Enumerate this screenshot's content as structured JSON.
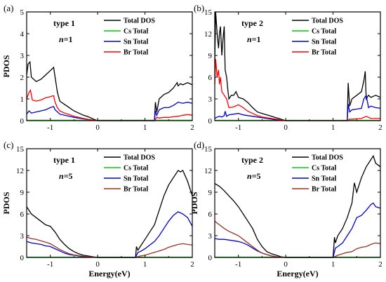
{
  "chart_data": [
    {
      "type": "line",
      "panel_label": "(a)",
      "annotation_type": "type 1",
      "annotation_n": "n=1",
      "xlabel": "",
      "ylabel": "PDOS",
      "xlim": [
        -1.5,
        2
      ],
      "ylim": [
        0,
        5
      ],
      "xticks": [
        -1,
        0,
        1,
        2
      ],
      "yticks": [
        0,
        1,
        2,
        3,
        4,
        5
      ],
      "legend_position": "top-right",
      "series": [
        {
          "name": "Total DOS",
          "color": "#000000",
          "x": [
            -1.5,
            -1.47,
            -1.43,
            -1.4,
            -1.3,
            -1.2,
            -1.1,
            -1.0,
            -0.93,
            -0.9,
            -0.85,
            -0.8,
            -0.7,
            -0.6,
            -0.5,
            -0.4,
            -0.3,
            -0.2,
            -0.1,
            0,
            1.2,
            1.22,
            1.25,
            1.3,
            1.4,
            1.5,
            1.6,
            1.68,
            1.7,
            1.75,
            1.8,
            1.9,
            2.0
          ],
          "y": [
            2.1,
            2.6,
            2.7,
            2.0,
            1.8,
            1.9,
            2.1,
            2.3,
            2.45,
            2.0,
            1.3,
            0.9,
            0.75,
            0.6,
            0.45,
            0.35,
            0.25,
            0.18,
            0.08,
            0,
            0,
            0.85,
            0.4,
            1.0,
            1.2,
            1.3,
            1.5,
            1.75,
            1.6,
            1.7,
            1.65,
            1.75,
            1.65
          ]
        },
        {
          "name": "Cs Total",
          "color": "#00cc00",
          "x": [
            -1.5,
            2.0
          ],
          "y": [
            0.02,
            0.02
          ]
        },
        {
          "name": "Sn Total",
          "color": "#0000cc",
          "x": [
            -1.5,
            -1.45,
            -1.4,
            -1.3,
            -1.2,
            -1.1,
            -1.0,
            -0.93,
            -0.9,
            -0.8,
            -0.7,
            -0.6,
            -0.5,
            -0.4,
            -0.3,
            -0.2,
            -0.1,
            0,
            1.2,
            1.22,
            1.25,
            1.3,
            1.4,
            1.5,
            1.6,
            1.7,
            1.8,
            1.9,
            2.0
          ],
          "y": [
            0.3,
            0.45,
            0.35,
            0.4,
            0.45,
            0.5,
            0.6,
            0.65,
            0.5,
            0.3,
            0.25,
            0.2,
            0.15,
            0.12,
            0.08,
            0.05,
            0.02,
            0,
            0,
            0.45,
            0.25,
            0.5,
            0.6,
            0.6,
            0.7,
            0.85,
            0.8,
            0.85,
            0.8
          ]
        },
        {
          "name": "Br Total",
          "color": "#ff0000",
          "x": [
            -1.5,
            -1.45,
            -1.42,
            -1.38,
            -1.3,
            -1.2,
            -1.1,
            -1.0,
            -0.93,
            -0.9,
            -0.85,
            -0.8,
            -0.7,
            -0.6,
            -0.5,
            -0.4,
            -0.3,
            -0.2,
            -0.1,
            0,
            1.2,
            1.25,
            1.3,
            1.4,
            1.5,
            1.6,
            1.7,
            1.8,
            1.9,
            2.0
          ],
          "y": [
            1.0,
            1.3,
            1.4,
            0.95,
            0.9,
            0.95,
            1.05,
            1.1,
            1.15,
            0.85,
            0.6,
            0.45,
            0.35,
            0.28,
            0.2,
            0.15,
            0.1,
            0.06,
            0.03,
            0,
            0,
            0.15,
            0.12,
            0.15,
            0.15,
            0.18,
            0.2,
            0.25,
            0.28,
            0.25
          ]
        }
      ]
    },
    {
      "type": "line",
      "panel_label": "(b)",
      "annotation_type": "type 2",
      "annotation_n": "n=1",
      "xlabel": "",
      "ylabel": "",
      "xlim": [
        -1.5,
        2
      ],
      "ylim": [
        0,
        15
      ],
      "xticks": [
        -1,
        0,
        1,
        2
      ],
      "yticks": [
        0,
        3,
        6,
        9,
        12,
        15
      ],
      "legend_position": "top-right",
      "series": [
        {
          "name": "Total DOS",
          "color": "#000000",
          "x": [
            -1.5,
            -1.48,
            -1.45,
            -1.42,
            -1.4,
            -1.38,
            -1.35,
            -1.33,
            -1.3,
            -1.28,
            -1.25,
            -1.22,
            -1.2,
            -1.15,
            -1.1,
            -1.05,
            -1.0,
            -0.9,
            -0.8,
            -0.7,
            -0.6,
            -0.5,
            -0.4,
            -0.3,
            -0.2,
            -0.1,
            0,
            1.3,
            1.32,
            1.35,
            1.4,
            1.5,
            1.6,
            1.65,
            1.68,
            1.7,
            1.75,
            1.8,
            1.9,
            2.0
          ],
          "y": [
            8,
            15,
            12,
            10,
            12,
            13,
            9,
            11,
            13,
            7,
            6,
            4,
            3,
            3.5,
            3.5,
            4,
            3.2,
            3,
            2.5,
            1.8,
            1.2,
            1.0,
            0.8,
            0.6,
            0.4,
            0.2,
            0,
            0,
            5.2,
            2,
            3,
            3.5,
            4,
            5.5,
            6.8,
            3,
            3.5,
            3.2,
            3.5,
            3.2
          ]
        },
        {
          "name": "Cs Total",
          "color": "#00cc00",
          "x": [
            -1.5,
            2.0
          ],
          "y": [
            0.05,
            0.05
          ]
        },
        {
          "name": "Sn Total",
          "color": "#0000cc",
          "x": [
            -1.5,
            -1.45,
            -1.4,
            -1.35,
            -1.3,
            -1.28,
            -1.25,
            -1.2,
            -1.1,
            -1.0,
            -0.9,
            -0.8,
            -0.7,
            -0.6,
            -0.5,
            -0.4,
            -0.3,
            -0.2,
            -0.1,
            0,
            1.3,
            1.32,
            1.35,
            1.4,
            1.5,
            1.6,
            1.65,
            1.7,
            1.75,
            1.8,
            1.9,
            2.0
          ],
          "y": [
            0.3,
            0.5,
            0.6,
            0.5,
            0.7,
            1.3,
            0.6,
            0.8,
            0.9,
            1.0,
            0.8,
            0.7,
            0.6,
            0.5,
            0.4,
            0.3,
            0.2,
            0.12,
            0.05,
            0,
            0,
            2.3,
            1.2,
            1.5,
            1.6,
            1.7,
            3.0,
            3.5,
            1.8,
            2.0,
            1.8,
            1.7
          ]
        },
        {
          "name": "Br Total",
          "color": "#ff0000",
          "x": [
            -1.5,
            -1.48,
            -1.45,
            -1.42,
            -1.4,
            -1.38,
            -1.35,
            -1.3,
            -1.25,
            -1.2,
            -1.1,
            -1.0,
            -0.9,
            -0.8,
            -0.7,
            -0.6,
            -0.5,
            -0.4,
            -0.3,
            -0.2,
            -0.1,
            0,
            1.3,
            1.35,
            1.4,
            1.5,
            1.6,
            1.7,
            1.8,
            1.9,
            2.0
          ],
          "y": [
            5,
            8.5,
            6,
            7,
            5,
            6,
            4,
            3.5,
            3,
            1.8,
            1.9,
            2.2,
            1.8,
            1.3,
            1.0,
            0.7,
            0.5,
            0.4,
            0.3,
            0.2,
            0.1,
            0,
            0,
            0.2,
            0.2,
            0.25,
            0.3,
            0.6,
            0.3,
            0.3,
            0.3
          ]
        }
      ]
    },
    {
      "type": "line",
      "panel_label": "(c)",
      "annotation_type": "type 1",
      "annotation_n": "n=5",
      "xlabel": "Energy(eV)",
      "ylabel": "PDOS",
      "xlim": [
        -1.5,
        2
      ],
      "ylim": [
        0,
        15
      ],
      "xticks": [
        -1,
        0,
        1,
        2
      ],
      "yticks": [
        0,
        3,
        6,
        9,
        12,
        15
      ],
      "legend_position": "top-right",
      "series": [
        {
          "name": "Total DOS",
          "color": "#000000",
          "x": [
            -1.5,
            -1.4,
            -1.3,
            -1.2,
            -1.1,
            -1.0,
            -0.9,
            -0.8,
            -0.7,
            -0.6,
            -0.5,
            -0.4,
            -0.3,
            -0.2,
            -0.1,
            0,
            0.8,
            0.82,
            0.85,
            0.9,
            1.0,
            1.1,
            1.2,
            1.3,
            1.4,
            1.5,
            1.6,
            1.7,
            1.75,
            1.8,
            1.9,
            2.0
          ],
          "y": [
            7,
            6,
            5.5,
            5,
            4.5,
            4.3,
            3.5,
            2.5,
            1.8,
            1.2,
            0.8,
            0.5,
            0.3,
            0.2,
            0.1,
            0,
            0,
            1.5,
            1.0,
            1.5,
            2.5,
            3.5,
            4.5,
            6.5,
            8.5,
            10,
            11,
            12,
            11.8,
            12,
            10.5,
            8.5
          ]
        },
        {
          "name": "Cs Total",
          "color": "#00cc00",
          "x": [
            -1.5,
            2.0
          ],
          "y": [
            0.05,
            0.05
          ]
        },
        {
          "name": "Sn Total",
          "color": "#0000cc",
          "x": [
            -1.5,
            -1.4,
            -1.3,
            -1.2,
            -1.1,
            -1.0,
            -0.9,
            -0.8,
            -0.7,
            -0.6,
            -0.5,
            -0.4,
            -0.3,
            -0.2,
            -0.1,
            0,
            0.8,
            0.85,
            0.9,
            1.0,
            1.1,
            1.2,
            1.3,
            1.4,
            1.5,
            1.6,
            1.7,
            1.8,
            1.9,
            2.0
          ],
          "y": [
            2.2,
            2.0,
            1.9,
            1.8,
            1.6,
            1.5,
            1.2,
            0.9,
            0.6,
            0.4,
            0.3,
            0.2,
            0.12,
            0.08,
            0.04,
            0,
            0,
            0.7,
            0.8,
            1.2,
            1.7,
            2.2,
            3.0,
            4.0,
            5.0,
            5.8,
            6.3,
            6.0,
            5.5,
            4.3
          ]
        },
        {
          "name": "Br Total",
          "color": "#993322",
          "x": [
            -1.5,
            -1.4,
            -1.3,
            -1.2,
            -1.1,
            -1.0,
            -0.9,
            -0.8,
            -0.7,
            -0.6,
            -0.5,
            -0.4,
            -0.3,
            -0.2,
            -0.1,
            0,
            0.8,
            0.9,
            1.0,
            1.1,
            1.2,
            1.3,
            1.4,
            1.5,
            1.6,
            1.7,
            1.8,
            1.9,
            2.0
          ],
          "y": [
            2.8,
            2.6,
            2.5,
            2.3,
            2.1,
            1.9,
            1.5,
            1.1,
            0.8,
            0.5,
            0.35,
            0.25,
            0.15,
            0.1,
            0.05,
            0,
            0,
            0.2,
            0.3,
            0.5,
            0.7,
            0.9,
            1.1,
            1.4,
            1.6,
            1.8,
            1.9,
            1.8,
            1.7
          ]
        }
      ]
    },
    {
      "type": "line",
      "panel_label": "(d)",
      "annotation_type": "type 2",
      "annotation_n": "n=5",
      "xlabel": "Energy(eV)",
      "ylabel": "PDOS",
      "xlim": [
        -1.5,
        2
      ],
      "ylim": [
        0,
        15
      ],
      "xticks": [
        -1,
        0,
        1,
        2
      ],
      "yticks": [
        0,
        3,
        6,
        9,
        12,
        15
      ],
      "legend_position": "top-right",
      "series": [
        {
          "name": "Total DOS",
          "color": "#000000",
          "x": [
            -1.5,
            -1.4,
            -1.3,
            -1.2,
            -1.1,
            -1.0,
            -0.9,
            -0.8,
            -0.7,
            -0.6,
            -0.5,
            -0.4,
            -0.3,
            -0.2,
            -0.1,
            0,
            1.0,
            1.03,
            1.05,
            1.1,
            1.2,
            1.3,
            1.4,
            1.45,
            1.5,
            1.6,
            1.7,
            1.8,
            1.85,
            1.9,
            2.0
          ],
          "y": [
            10.2,
            9.8,
            9.2,
            8.5,
            7.8,
            7.0,
            6.0,
            5.0,
            4.0,
            2.5,
            1.5,
            0.8,
            0.5,
            0.3,
            0.1,
            0,
            0,
            2.8,
            2.0,
            3.0,
            4.0,
            5.5,
            7.5,
            10.3,
            9.0,
            11.0,
            12.5,
            13.5,
            14.0,
            13.0,
            12.5
          ]
        },
        {
          "name": "Cs Total",
          "color": "#00cc00",
          "x": [
            -1.5,
            2.0
          ],
          "y": [
            0.05,
            0.05
          ]
        },
        {
          "name": "Sn Total",
          "color": "#0000cc",
          "x": [
            -1.5,
            -1.4,
            -1.3,
            -1.2,
            -1.1,
            -1.0,
            -0.9,
            -0.8,
            -0.7,
            -0.6,
            -0.5,
            -0.4,
            -0.3,
            -0.2,
            -0.1,
            0,
            1.0,
            1.05,
            1.1,
            1.2,
            1.3,
            1.4,
            1.5,
            1.6,
            1.7,
            1.8,
            1.85,
            1.9,
            2.0
          ],
          "y": [
            2.6,
            2.5,
            2.5,
            2.4,
            2.3,
            2.2,
            2.0,
            1.7,
            1.3,
            0.9,
            0.6,
            0.4,
            0.2,
            0.1,
            0.05,
            0,
            0,
            1.3,
            1.5,
            2.0,
            3.0,
            4.0,
            5.5,
            5.8,
            6.5,
            7.3,
            7.5,
            7.0,
            6.8
          ]
        },
        {
          "name": "Br Total",
          "color": "#993322",
          "x": [
            -1.5,
            -1.4,
            -1.3,
            -1.2,
            -1.1,
            -1.0,
            -0.9,
            -0.8,
            -0.7,
            -0.6,
            -0.5,
            -0.4,
            -0.3,
            -0.2,
            -0.1,
            0,
            1.0,
            1.1,
            1.2,
            1.3,
            1.4,
            1.5,
            1.6,
            1.7,
            1.8,
            1.9,
            2.0
          ],
          "y": [
            5.0,
            4.5,
            4.0,
            3.6,
            3.3,
            3.0,
            2.5,
            2.0,
            1.5,
            1.0,
            0.6,
            0.4,
            0.2,
            0.1,
            0.05,
            0,
            0,
            0.3,
            0.5,
            0.7,
            0.8,
            1.2,
            1.4,
            1.5,
            1.8,
            2.0,
            1.9
          ]
        }
      ]
    }
  ]
}
